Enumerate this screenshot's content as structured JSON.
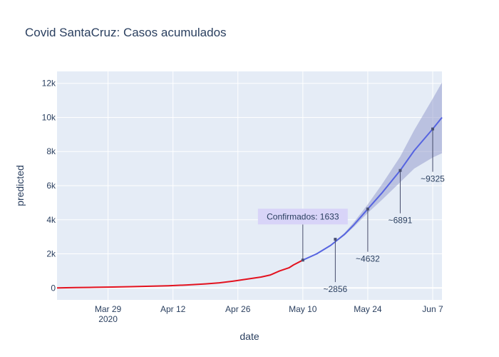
{
  "chart_data": {
    "type": "line",
    "title": "Covid SantaCruz: Casos acumulados",
    "xlabel": "date",
    "ylabel": "predicted",
    "x_range": [
      "2020-03-18",
      "2020-06-09"
    ],
    "y_range": [
      -700,
      12700
    ],
    "grid": true,
    "x_ticks": [
      {
        "date": "2020-03-29",
        "label": "Mar 29",
        "sublabel": "2020"
      },
      {
        "date": "2020-04-12",
        "label": "Apr 12",
        "sublabel": ""
      },
      {
        "date": "2020-04-26",
        "label": "Apr 26",
        "sublabel": ""
      },
      {
        "date": "2020-05-10",
        "label": "May 10",
        "sublabel": ""
      },
      {
        "date": "2020-05-24",
        "label": "May 24",
        "sublabel": ""
      },
      {
        "date": "2020-06-07",
        "label": "Jun 7",
        "sublabel": ""
      }
    ],
    "y_ticks": [
      {
        "value": 0,
        "label": "0"
      },
      {
        "value": 2000,
        "label": "2k"
      },
      {
        "value": 4000,
        "label": "4k"
      },
      {
        "value": 6000,
        "label": "6k"
      },
      {
        "value": 8000,
        "label": "8k"
      },
      {
        "value": 10000,
        "label": "10k"
      },
      {
        "value": 12000,
        "label": "12k"
      }
    ],
    "confirmed": {
      "color": "#e3121f",
      "x": [
        "2020-03-18",
        "2020-03-22",
        "2020-03-26",
        "2020-03-30",
        "2020-04-03",
        "2020-04-07",
        "2020-04-11",
        "2020-04-15",
        "2020-04-19",
        "2020-04-22",
        "2020-04-25",
        "2020-04-28",
        "2020-05-01",
        "2020-05-03",
        "2020-05-05",
        "2020-05-07",
        "2020-05-08",
        "2020-05-10"
      ],
      "y": [
        0,
        20,
        35,
        55,
        75,
        100,
        130,
        175,
        240,
        300,
        400,
        520,
        640,
        760,
        1000,
        1180,
        1350,
        1633
      ]
    },
    "predicted": {
      "color": "#5664e0",
      "x": [
        "2020-05-10",
        "2020-05-13",
        "2020-05-16",
        "2020-05-19",
        "2020-05-21",
        "2020-05-24",
        "2020-05-27",
        "2020-05-31",
        "2020-06-03",
        "2020-06-07",
        "2020-06-09"
      ],
      "y": [
        1633,
        2000,
        2500,
        3150,
        3700,
        4632,
        5550,
        6891,
        8050,
        9325,
        10000
      ]
    },
    "band": {
      "color": "#8f95c9",
      "x": [
        "2020-05-10",
        "2020-05-13",
        "2020-05-16",
        "2020-05-19",
        "2020-05-21",
        "2020-05-24",
        "2020-05-27",
        "2020-05-31",
        "2020-06-03",
        "2020-06-07",
        "2020-06-09"
      ],
      "upper": [
        1633,
        2010,
        2530,
        3230,
        3850,
        4900,
        6050,
        7700,
        9250,
        11100,
        12050
      ],
      "lower": [
        1633,
        1990,
        2470,
        3080,
        3580,
        4400,
        5150,
        6200,
        7000,
        7650,
        7900
      ]
    },
    "markers": [
      {
        "x": "2020-05-10",
        "y": 1633
      },
      {
        "x": "2020-05-17",
        "y": 2856
      },
      {
        "x": "2020-05-24",
        "y": 4632
      },
      {
        "x": "2020-05-31",
        "y": 6891
      },
      {
        "x": "2020-06-07",
        "y": 9325
      }
    ],
    "annotations": [
      {
        "x": "2020-05-10",
        "y": 1633,
        "text": "Confirmados: 1633",
        "boxed": true
      },
      {
        "x": "2020-05-17",
        "y": 2856,
        "text": "~2856",
        "boxed": false
      },
      {
        "x": "2020-05-24",
        "y": 4632,
        "text": "~4632",
        "boxed": false
      },
      {
        "x": "2020-05-31",
        "y": 6891,
        "text": "~6891",
        "boxed": false
      },
      {
        "x": "2020-06-07",
        "y": 9325,
        "text": "~9325",
        "boxed": false
      }
    ]
  }
}
